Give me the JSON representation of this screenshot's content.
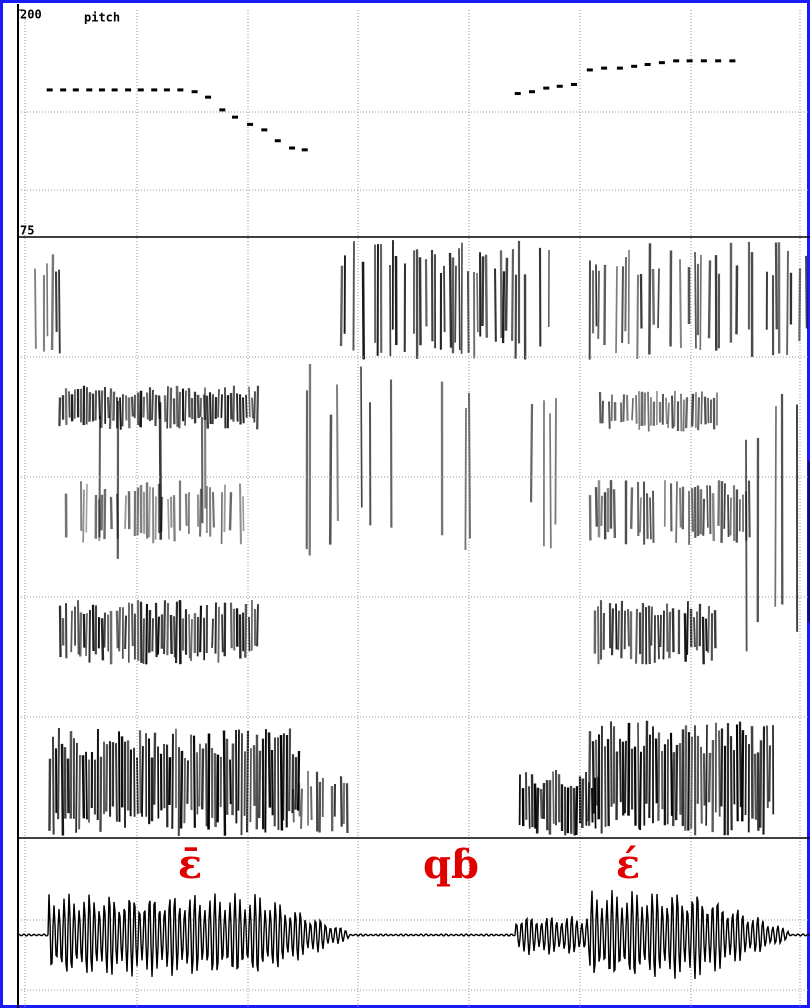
{
  "chart_data": {
    "type": "scatter",
    "title": "pitch",
    "color": "#000000",
    "ylim": [
      75,
      200
    ],
    "yticks": [
      200,
      75
    ],
    "xlim": [
      0,
      1
    ],
    "x": [
      0.04,
      0.057,
      0.073,
      0.09,
      0.106,
      0.122,
      0.139,
      0.155,
      0.172,
      0.188,
      0.205,
      0.223,
      0.24,
      0.258,
      0.274,
      0.293,
      0.311,
      0.328,
      0.346,
      0.362,
      0.631,
      0.649,
      0.667,
      0.684,
      0.702,
      0.722,
      0.74,
      0.76,
      0.778,
      0.795,
      0.813,
      0.831,
      0.848,
      0.866,
      0.884,
      0.902
    ],
    "values": [
      156,
      156,
      156,
      156,
      156,
      156,
      156,
      156,
      156,
      156,
      156,
      155,
      152,
      145,
      141,
      137,
      134,
      128,
      124,
      123,
      154,
      155,
      157,
      158,
      159,
      167,
      168,
      168,
      169,
      170,
      171,
      172,
      172,
      172,
      172,
      172
    ],
    "annotations": [
      "ɛ̄",
      "qɓ",
      "ɛ́"
    ]
  }
}
